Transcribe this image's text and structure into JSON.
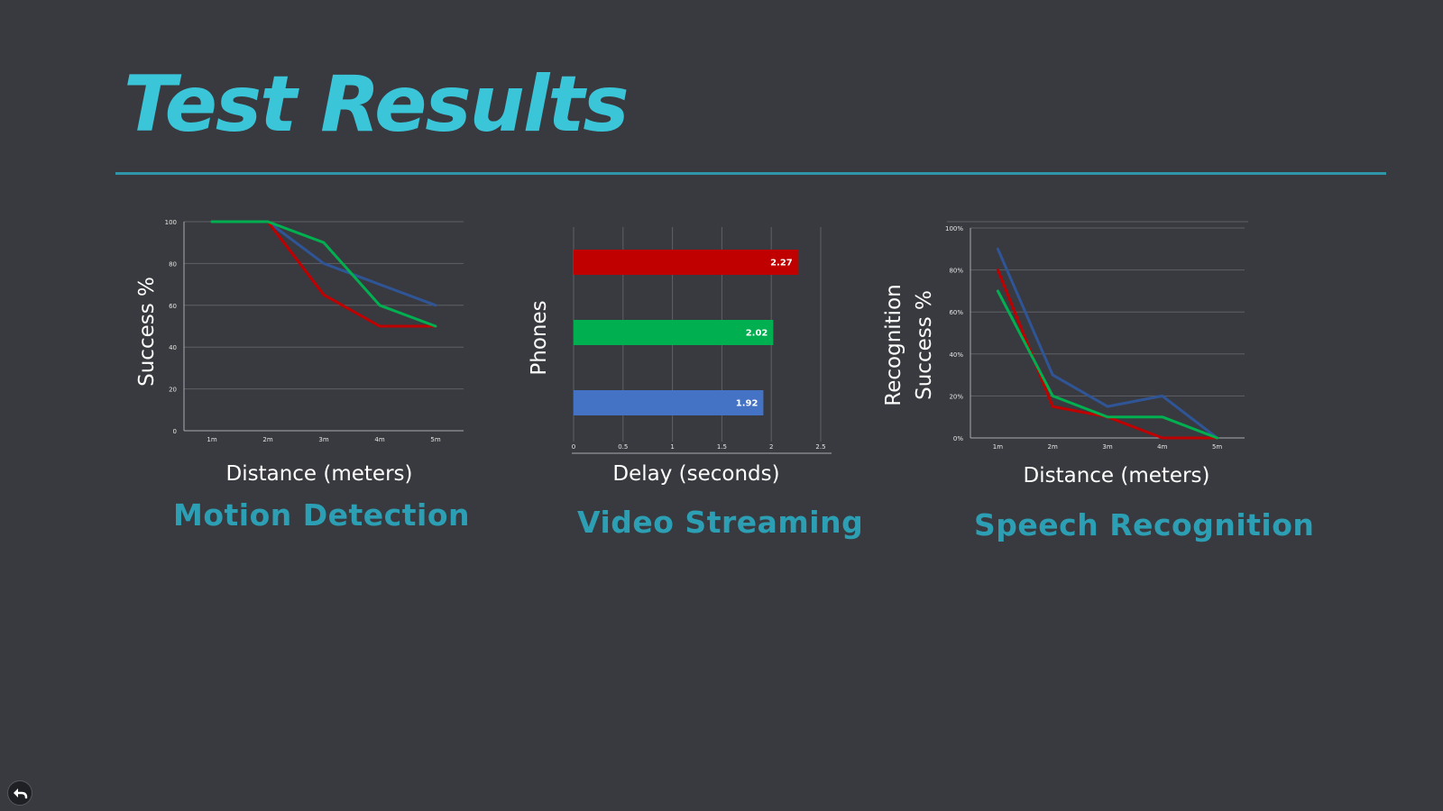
{
  "slide": {
    "title": "Test Results"
  },
  "colors": {
    "title": "#3ac5d9",
    "caption": "#2c9fb4",
    "rule": "#2e96a8",
    "background": "#393a3f",
    "series_red": "#c00000",
    "series_green": "#00b050",
    "series_blue": "#2f5597",
    "bar_blue": "#4472c4"
  },
  "controls": {
    "back_icon": "back-arrow-icon"
  },
  "chart_data": [
    {
      "type": "line",
      "caption": "Motion Detection",
      "xlabel": "Distance (meters)",
      "ylabel": "Success %",
      "categories": [
        "1m",
        "2m",
        "3m",
        "4m",
        "5m"
      ],
      "yticks": [
        "0",
        "20",
        "40",
        "60",
        "80",
        "100"
      ],
      "ylim": [
        0,
        100
      ],
      "grid": true,
      "series": [
        {
          "color": "#2f5597",
          "values": [
            100,
            100,
            80,
            70,
            60
          ]
        },
        {
          "color": "#c00000",
          "values": [
            100,
            100,
            65,
            50,
            50
          ]
        },
        {
          "color": "#00b050",
          "values": [
            100,
            100,
            90,
            60,
            50
          ]
        }
      ]
    },
    {
      "type": "bar",
      "orientation": "horizontal",
      "caption": "Video Streaming",
      "xlabel": "Delay (seconds)",
      "ylabel": "Phones",
      "xticks": [
        "0",
        "0.5",
        "1",
        "1.5",
        "2",
        "2.5"
      ],
      "xlim": [
        0,
        2.5
      ],
      "grid": true,
      "values": [
        2.27,
        2.02,
        1.92
      ],
      "labels": [
        "2.27",
        "2.02",
        "1.92"
      ],
      "colors": [
        "#c00000",
        "#00b050",
        "#4472c4"
      ]
    },
    {
      "type": "line",
      "caption": "Speech Recognition",
      "xlabel": "Distance (meters)",
      "ylabel": [
        "Recognition",
        "Success %"
      ],
      "categories": [
        "1m",
        "2m",
        "3m",
        "4m",
        "5m"
      ],
      "yticks": [
        "0%",
        "20%",
        "40%",
        "60%",
        "80%",
        "100%"
      ],
      "ylim": [
        0,
        100
      ],
      "grid": true,
      "series": [
        {
          "color": "#2f5597",
          "values": [
            90,
            30,
            15,
            20,
            0
          ]
        },
        {
          "color": "#c00000",
          "values": [
            80,
            15,
            10,
            0,
            0
          ]
        },
        {
          "color": "#00b050",
          "values": [
            70,
            20,
            10,
            10,
            0
          ]
        }
      ]
    }
  ]
}
